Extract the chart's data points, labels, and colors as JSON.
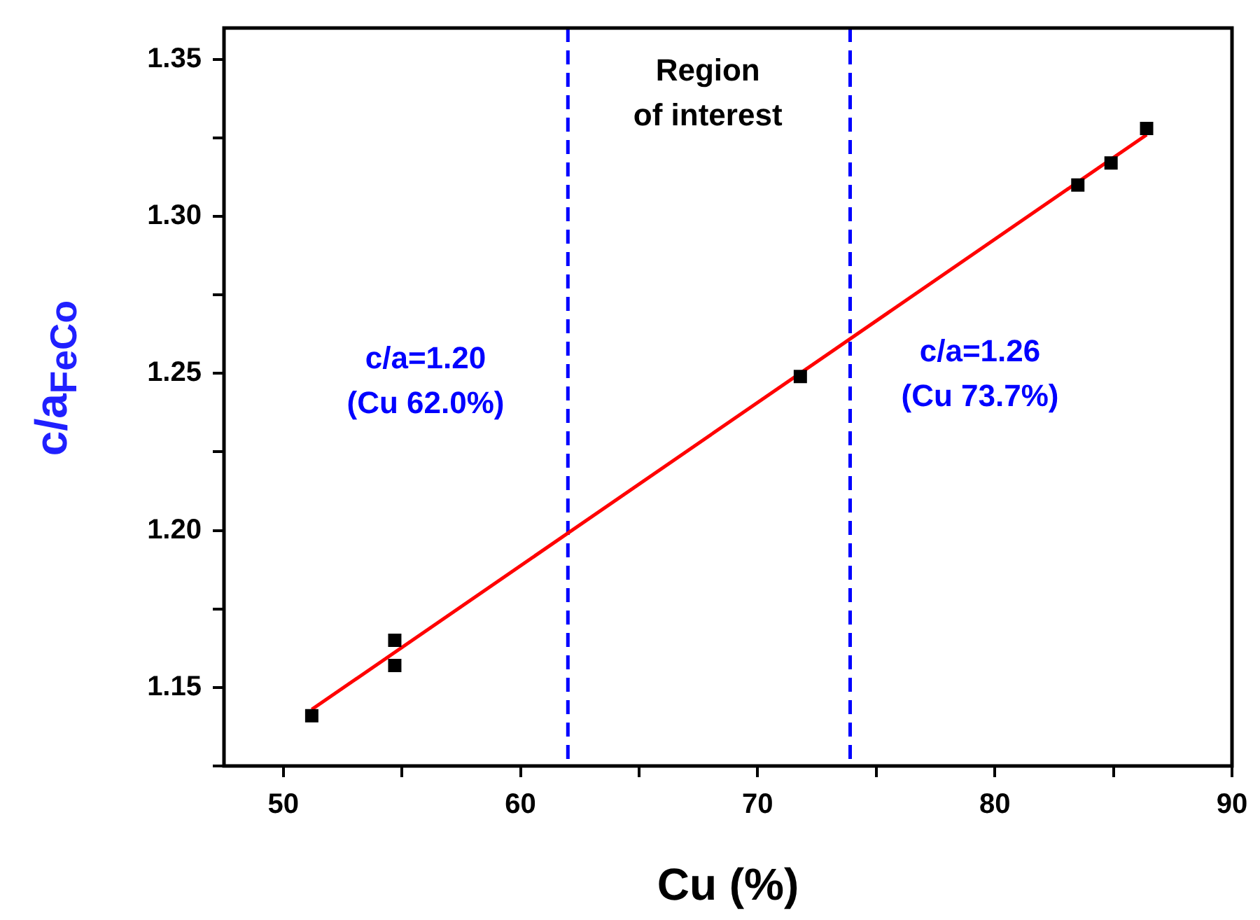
{
  "chart_data": {
    "type": "scatter",
    "xlabel": "Cu (%)",
    "ylabel": "c/a$_{FeCo}$",
    "xlim": [
      47.5,
      90
    ],
    "xticks": [
      50,
      {
        "value": 55,
        "label": null
      },
      60,
      {
        "value": 65,
        "label": null
      },
      70,
      {
        "value": 75,
        "label": null
      },
      80,
      {
        "value": 85,
        "label": null
      },
      90
    ],
    "ylim": [
      1.125,
      1.36
    ],
    "yticks": [
      {
        "value": 1.125,
        "label": null
      },
      1.15,
      {
        "value": 1.175,
        "label": null
      },
      "1.20",
      {
        "value": 1.225,
        "label": null
      },
      1.25,
      {
        "value": 1.275,
        "label": null
      },
      "1.30",
      {
        "value": 1.325,
        "label": null
      },
      1.35
    ],
    "grid": false,
    "legend": false,
    "marker": "square",
    "series": [
      {
        "color": "#000000",
        "x": [
          51.2,
          54.7,
          54.7,
          71.8,
          83.5,
          84.9,
          86.4
        ],
        "values": [
          1.141,
          1.157,
          1.165,
          1.249,
          1.31,
          1.317,
          1.328
        ]
      },
      {
        "type": "line",
        "marker": "none",
        "color": "#ff0000",
        "x": [
          51.2,
          86.4
        ],
        "values": [
          1.143,
          1.326
        ]
      }
    ],
    "ref_lines": [
      {
        "axis": "x",
        "value": 62.0,
        "color": "#0000ff",
        "line_style": "dashed"
      },
      {
        "axis": "x",
        "value": 73.9,
        "color": "#0000ff",
        "line_style": "dashed"
      }
    ],
    "annotations": [
      "Region\nof interest",
      "c/a=1.20\n(Cu 62.0%)",
      "c/a=1.26\n(Cu 73.7%)"
    ]
  }
}
